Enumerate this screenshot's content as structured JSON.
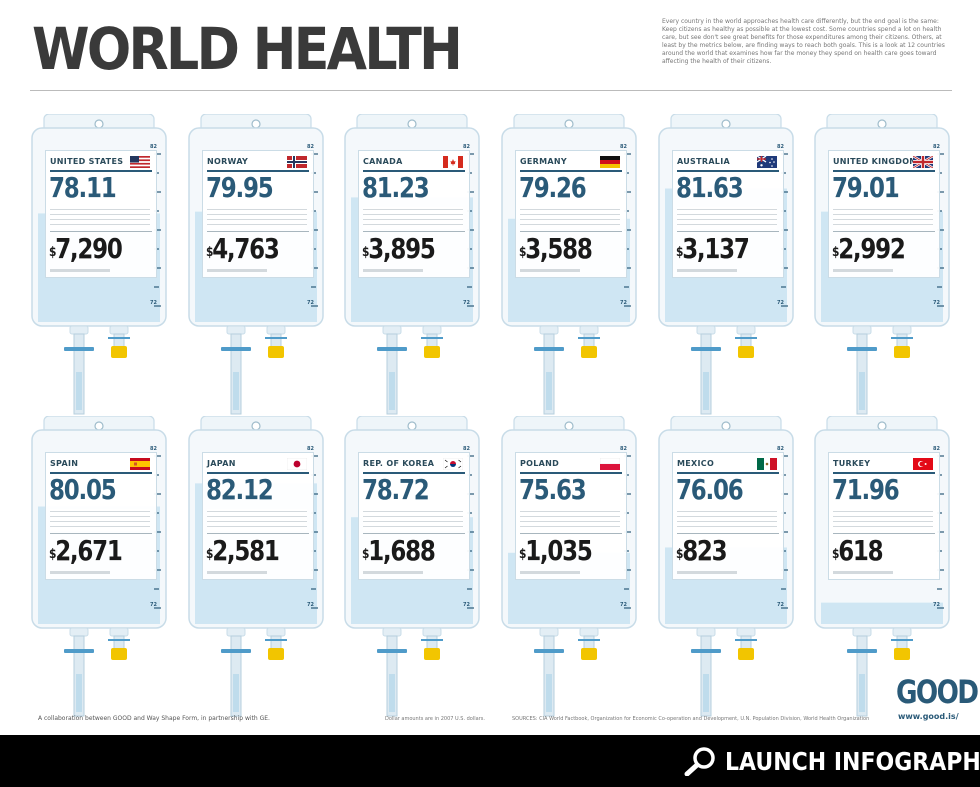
{
  "title": "WORLD HEALTH",
  "intro": "Every country in the world approaches health care differently, but the end goal is the same: Keep citizens as healthy as possible at the lowest cost. Some countries spend a lot on health care, but see don't see great benefits for those expenditures among their citizens. Others, at least by the metrics below, are finding ways to reach both goals. This is a look at 12 countries around the world that examines how far the money they spend on health care goes toward affecting the health of their citizens.",
  "countries": [
    {
      "name": "UNITED STATES",
      "life_expectancy": "78.11",
      "spending": "7,290",
      "flag": "us-flag",
      "fill": 0.61
    },
    {
      "name": "NORWAY",
      "life_expectancy": "79.95",
      "spending": "4,763",
      "flag": "norway-flag",
      "fill": 0.62
    },
    {
      "name": "CANADA",
      "life_expectancy": "81.23",
      "spending": "3,895",
      "flag": "canada-flag",
      "fill": 0.7
    },
    {
      "name": "GERMANY",
      "life_expectancy": "79.26",
      "spending": "3,588",
      "flag": "germany-flag",
      "fill": 0.58
    },
    {
      "name": "AUSTRALIA",
      "life_expectancy": "81.63",
      "spending": "3,137",
      "flag": "australia-flag",
      "fill": 0.75
    },
    {
      "name": "UNITED KINGDOM",
      "life_expectancy": "79.01",
      "spending": "2,992",
      "flag": "uk-flag",
      "fill": 0.62
    },
    {
      "name": "SPAIN",
      "life_expectancy": "80.05",
      "spending": "2,671",
      "flag": "spain-flag",
      "fill": 0.66
    },
    {
      "name": "JAPAN",
      "life_expectancy": "82.12",
      "spending": "2,581",
      "flag": "japan-flag",
      "fill": 0.79
    },
    {
      "name": "REP. OF KOREA",
      "life_expectancy": "78.72",
      "spending": "1,688",
      "flag": "korea-flag",
      "fill": 0.6
    },
    {
      "name": "POLAND",
      "life_expectancy": "75.63",
      "spending": "1,035",
      "flag": "poland-flag",
      "fill": 0.4
    },
    {
      "name": "MEXICO",
      "life_expectancy": "76.06",
      "spending": "823",
      "flag": "mexico-flag",
      "fill": 0.43
    },
    {
      "name": "TURKEY",
      "life_expectancy": "71.96",
      "spending": "618",
      "flag": "turkey-flag",
      "fill": 0.12
    }
  ],
  "bag_scale": {
    "top": "82",
    "bottom": "72"
  },
  "footer": {
    "collab": "A collaboration between GOOD and Way Shape Form, in partnership with GE.",
    "dollars_note": "Dollar amounts are in 2007 U.S. dollars.",
    "sources": "SOURCES: CIA World Factbook, Organization for Economic Co-operation and Development, U.N. Population Division, World Health Organization"
  },
  "logo": {
    "text": "GOOD",
    "url": "www.good.is/"
  },
  "launch_label": "LAUNCH INFOGRAPHIC",
  "colors": {
    "accent": "#2a5a78",
    "fluid": "#cfe6f3",
    "cap": "#f2c500",
    "bar": "#000000"
  }
}
